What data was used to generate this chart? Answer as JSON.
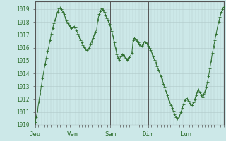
{
  "background_color": "#cce8e8",
  "line_color": "#2d6e2d",
  "marker_color": "#2d6e2d",
  "grid_color": "#b0c8c8",
  "day_line_color": "#555555",
  "ylabel_color": "#2d6e2d",
  "xlabel_color": "#2d6e2d",
  "ylim": [
    1010.0,
    1019.6
  ],
  "yticks": [
    1010,
    1011,
    1012,
    1013,
    1014,
    1015,
    1016,
    1017,
    1018,
    1019
  ],
  "x_day_positions": [
    0,
    24,
    48,
    72,
    96
  ],
  "x_day_labels": [
    "Jeu",
    "Ven",
    "Sam",
    "Dim",
    "Lun"
  ],
  "total_hours": 120,
  "values": [
    1010.2,
    1010.6,
    1011.1,
    1011.8,
    1012.4,
    1013.0,
    1013.6,
    1014.2,
    1014.7,
    1015.2,
    1015.7,
    1016.1,
    1016.6,
    1017.1,
    1017.5,
    1017.9,
    1018.2,
    1018.5,
    1018.8,
    1019.05,
    1019.1,
    1019.0,
    1018.8,
    1018.6,
    1018.35,
    1018.1,
    1017.9,
    1017.75,
    1017.6,
    1017.5,
    1017.55,
    1017.65,
    1017.55,
    1017.35,
    1017.1,
    1016.85,
    1016.6,
    1016.4,
    1016.2,
    1016.05,
    1015.9,
    1015.8,
    1015.75,
    1016.0,
    1016.25,
    1016.5,
    1016.75,
    1017.0,
    1017.2,
    1017.4,
    1018.2,
    1018.6,
    1018.85,
    1019.05,
    1018.95,
    1018.75,
    1018.55,
    1018.3,
    1018.1,
    1017.85,
    1017.6,
    1017.3,
    1016.85,
    1016.4,
    1015.95,
    1015.5,
    1015.2,
    1015.05,
    1015.3,
    1015.5,
    1015.45,
    1015.35,
    1015.2,
    1015.05,
    1015.15,
    1015.25,
    1015.4,
    1015.6,
    1016.6,
    1016.75,
    1016.65,
    1016.55,
    1016.4,
    1016.25,
    1016.1,
    1016.15,
    1016.3,
    1016.5,
    1016.4,
    1016.3,
    1016.15,
    1016.0,
    1015.8,
    1015.55,
    1015.3,
    1015.05,
    1014.8,
    1014.55,
    1014.3,
    1014.05,
    1013.8,
    1013.5,
    1013.2,
    1012.9,
    1012.6,
    1012.3,
    1012.05,
    1011.8,
    1011.55,
    1011.3,
    1011.05,
    1010.8,
    1010.6,
    1010.5,
    1010.55,
    1010.7,
    1011.0,
    1011.3,
    1011.6,
    1011.9,
    1012.05,
    1012.05,
    1011.85,
    1011.65,
    1011.5,
    1011.55,
    1011.75,
    1012.0,
    1012.3,
    1012.6,
    1012.75,
    1012.5,
    1012.3,
    1012.15,
    1012.35,
    1012.6,
    1012.9,
    1013.3,
    1013.8,
    1014.4,
    1015.0,
    1015.6,
    1016.1,
    1016.6,
    1017.1,
    1017.6,
    1018.0,
    1018.4,
    1018.75,
    1019.0,
    1019.15
  ]
}
